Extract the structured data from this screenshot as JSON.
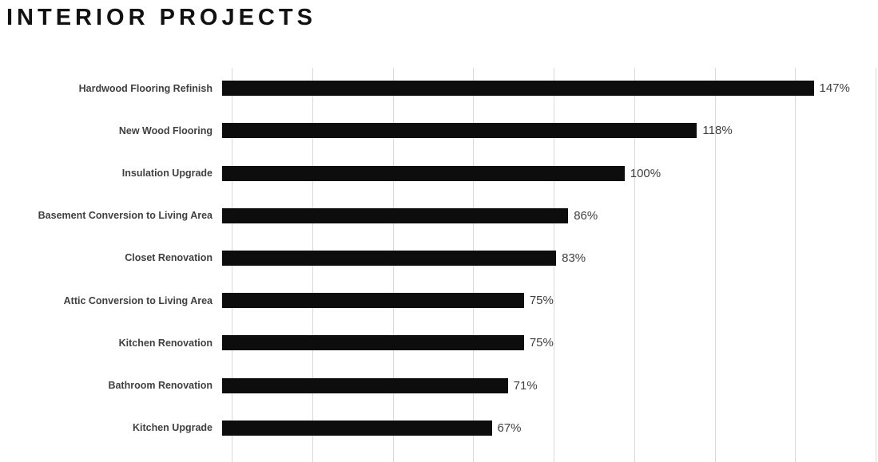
{
  "chart_data": {
    "type": "bar",
    "orientation": "horizontal",
    "title": "INTERIOR PROJECTS",
    "categories": [
      "Hardwood Flooring Refinish",
      "New Wood Flooring",
      "Insulation Upgrade",
      "Basement Conversion to Living Area",
      "Closet Renovation",
      "Attic Conversion to Living Area",
      "Kitchen Renovation",
      "Bathroom Renovation",
      "Kitchen Upgrade"
    ],
    "values": [
      147,
      118,
      100,
      86,
      83,
      75,
      75,
      71,
      67
    ],
    "value_labels": [
      "147%",
      "118%",
      "100%",
      "86%",
      "83%",
      "75%",
      "75%",
      "71%",
      "67%"
    ],
    "xlabel": "",
    "ylabel": "",
    "xlim": [
      0,
      160
    ],
    "gridline_interval": 20,
    "grid": "vertical-only",
    "legend_position": "none",
    "axis_tick_labels_visible": false,
    "colors": {
      "bar": "#0d0d0d",
      "label_text": "#404040",
      "value_text": "#404040",
      "title_text": "#111111",
      "gridline": "#d9d9d9",
      "background": "#ffffff"
    }
  }
}
